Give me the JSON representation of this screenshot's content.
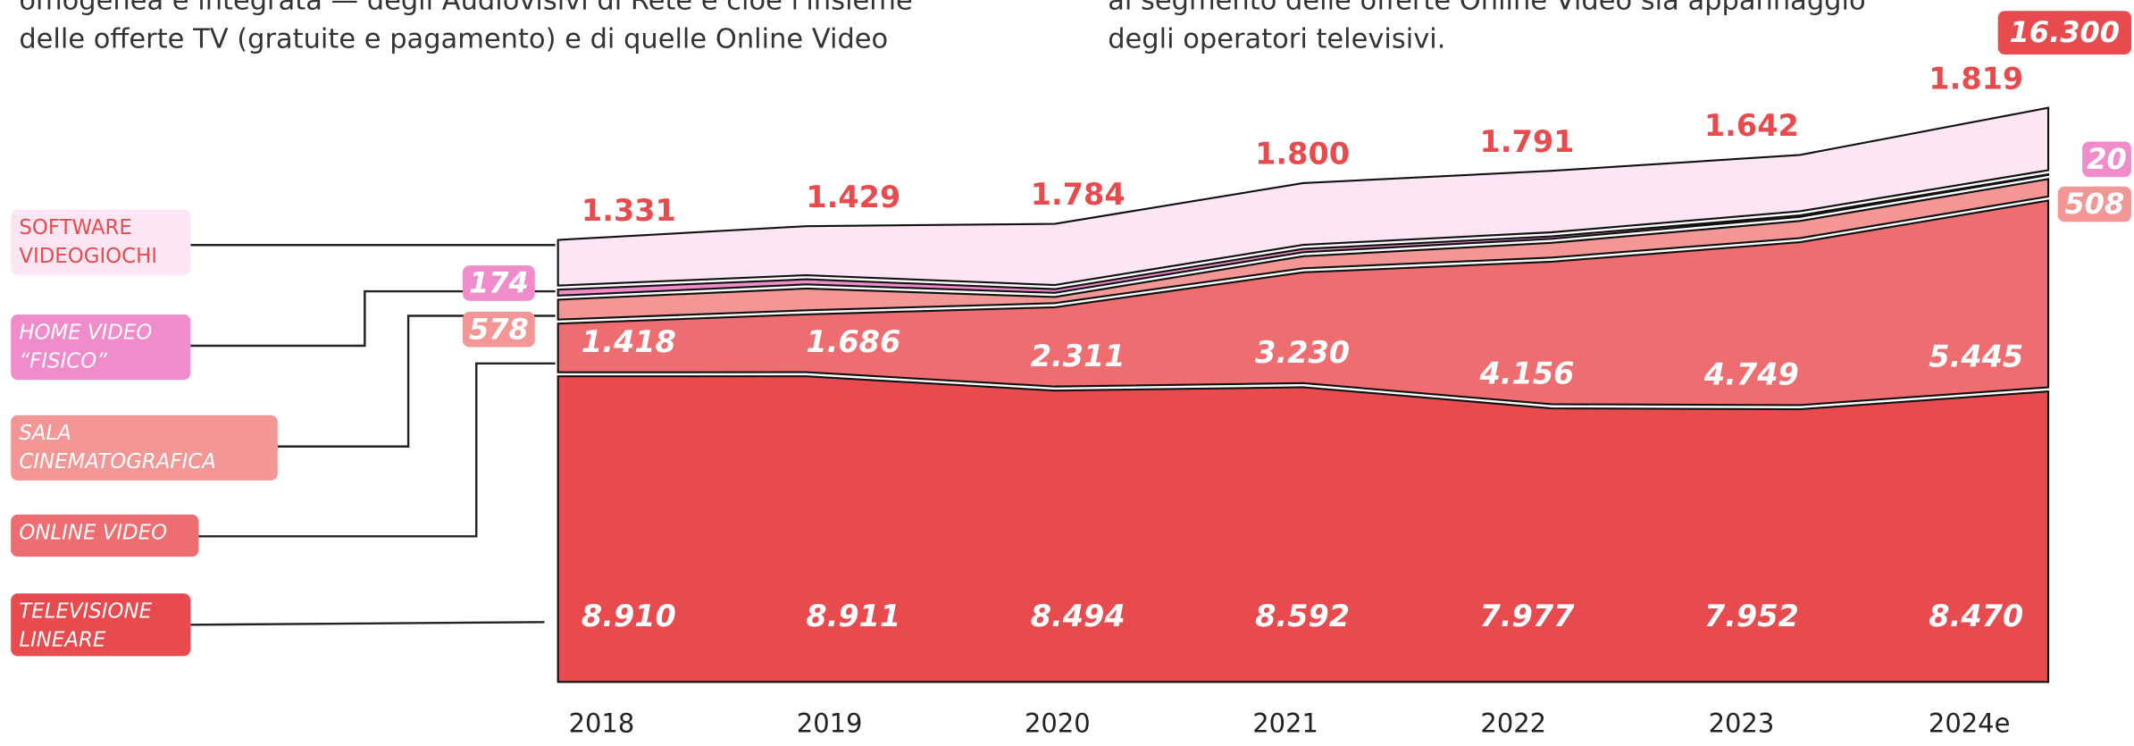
{
  "intro": {
    "left": [
      "omogenea e integrata — degli Audiovisivi di Rete e cioè l'insieme",
      "delle offerte TV (gratuite e pagamento) e di quelle Online Video"
    ],
    "right": [
      "al segmento delle offerte Online Video sia appannaggio",
      "degli operatori televisivi."
    ]
  },
  "chart_data": {
    "type": "area",
    "categories": [
      "2018",
      "2019",
      "2020",
      "2021",
      "2022",
      "2023",
      "2024e"
    ],
    "total": {
      "value": 16300,
      "label": "16.300"
    },
    "series": [
      {
        "name": "TELEVISIONE LINEARE",
        "color": "#e84b4e",
        "values": [
          8910,
          8911,
          8494,
          8592,
          7977,
          7952,
          8470
        ],
        "value_labels": [
          "8.910",
          "8.911",
          "8.494",
          "8.592",
          "7.977",
          "7.952",
          "8.470"
        ]
      },
      {
        "name": "ONLINE VIDEO",
        "color": "#ee6d70",
        "values": [
          1418,
          1686,
          2311,
          3230,
          4156,
          4749,
          5445
        ],
        "value_labels": [
          "1.418",
          "1.686",
          "2.311",
          "3.230",
          "4.156",
          "4.749",
          "5.445"
        ]
      },
      {
        "name": "SALA CINEMATOGRAFICA",
        "color": "#f29796",
        "values": [
          578,
          635,
          180,
          350,
          430,
          500,
          508
        ]
      },
      {
        "name": "HOME VIDEO “FISICO”",
        "color": "#f08ccb",
        "values": [
          174,
          150,
          110,
          95,
          70,
          45,
          20
        ]
      },
      {
        "name": "SOFTWARE VIDEOGIOCHI",
        "color": "#fce6f3",
        "values": [
          1331,
          1429,
          1784,
          1800,
          1791,
          1642,
          1819
        ],
        "value_labels": [
          "1.331",
          "1.429",
          "1.784",
          "1.800",
          "1.791",
          "1.642",
          "1.819"
        ]
      }
    ]
  }
}
